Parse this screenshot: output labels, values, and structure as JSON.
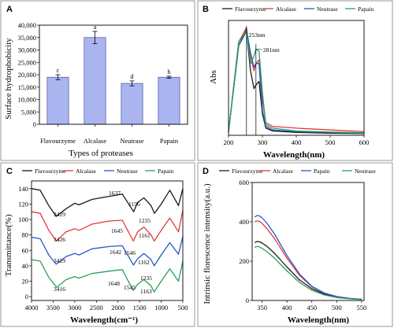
{
  "panels": [
    {
      "letter": "A"
    },
    {
      "letter": "B"
    },
    {
      "letter": "C"
    },
    {
      "letter": "D"
    }
  ],
  "colors": {
    "black": "#1a1a1a",
    "red": "#e23a3a",
    "blue": "#2657c9",
    "green": "#2aa05a",
    "bar_fill": "#aab5f0",
    "bar_stroke": "#3a3a8a"
  },
  "chart_data": [
    {
      "panel": "A",
      "type": "bar",
      "categories": [
        "Flavourzyme",
        "Alcalase",
        "Neutrase",
        "Papain"
      ],
      "values": [
        19000,
        35000,
        16500,
        19000
      ],
      "errors": [
        1000,
        2500,
        1000,
        400
      ],
      "significance": [
        "c",
        "a",
        "d",
        "b"
      ],
      "xlabel": "Types of proteases",
      "ylabel": "Surface hydrophobicity",
      "ylim": [
        0,
        40000
      ],
      "yticks": [
        0,
        5000,
        10000,
        15000,
        20000,
        25000,
        30000,
        35000,
        40000
      ],
      "ytick_labels": [
        "0",
        "5,000",
        "10,000",
        "15,000",
        "20,000",
        "25,000",
        "30,000",
        "35,000",
        "40,000"
      ],
      "grid": false
    },
    {
      "panel": "B",
      "type": "line",
      "xlabel": "Wavelength(nm)",
      "ylabel": "Abs",
      "xlim": [
        200,
        600
      ],
      "ylim": [
        0,
        3.2
      ],
      "xticks": [
        200,
        300,
        400,
        500,
        600
      ],
      "legend_position": "top",
      "annotations": [
        {
          "text": "253nm",
          "x": 253
        },
        {
          "text": "281nm",
          "x": 281
        }
      ],
      "series": [
        {
          "name": "Flavourzyme",
          "color": "#1a1a1a",
          "x": [
            200,
            230,
            253,
            265,
            275,
            281,
            290,
            300,
            310,
            330,
            400,
            500,
            600
          ],
          "y": [
            0.1,
            2.5,
            2.9,
            1.8,
            1.3,
            1.4,
            1.5,
            0.6,
            0.2,
            0.12,
            0.08,
            0.06,
            0.05
          ]
        },
        {
          "name": "Alcalase",
          "color": "#e23a3a",
          "x": [
            200,
            230,
            253,
            265,
            275,
            281,
            290,
            300,
            310,
            330,
            400,
            500,
            600
          ],
          "y": [
            0.1,
            2.6,
            3.0,
            2.2,
            1.8,
            2.0,
            2.1,
            1.0,
            0.35,
            0.25,
            0.2,
            0.15,
            0.1
          ]
        },
        {
          "name": "Neutrase",
          "color": "#2657c9",
          "x": [
            200,
            230,
            253,
            265,
            275,
            281,
            290,
            300,
            310,
            330,
            400,
            500,
            600
          ],
          "y": [
            0.1,
            2.5,
            2.95,
            2.3,
            1.9,
            2.0,
            2.0,
            0.7,
            0.25,
            0.15,
            0.1,
            0.08,
            0.06
          ]
        },
        {
          "name": "Papain",
          "color": "#2aa05a",
          "x": [
            200,
            230,
            253,
            265,
            275,
            281,
            290,
            300,
            310,
            330,
            400,
            500,
            600
          ],
          "y": [
            0.1,
            2.6,
            2.9,
            2.0,
            2.2,
            2.4,
            2.35,
            1.2,
            0.3,
            0.2,
            0.12,
            0.09,
            0.07
          ]
        }
      ]
    },
    {
      "panel": "C",
      "type": "line",
      "xlabel": "Wavelength(cm⁻¹)",
      "ylabel": "Transmittance(%)",
      "xlim": [
        4000,
        500
      ],
      "ylim": [
        -5,
        150
      ],
      "xticks": [
        4000,
        3500,
        3000,
        2500,
        2000,
        1500,
        1000,
        500
      ],
      "yticks": [
        0,
        20,
        40,
        60,
        80,
        100,
        120,
        140
      ],
      "legend_position": "top",
      "annotations": [
        {
          "text": "3429",
          "series": 0
        },
        {
          "text": "1637",
          "series": 0
        },
        {
          "text": "1156",
          "series": 0
        },
        {
          "text": "3426",
          "series": 1
        },
        {
          "text": "1645",
          "series": 1
        },
        {
          "text": "1235",
          "series": 1
        },
        {
          "text": "1161",
          "series": 1
        },
        {
          "text": "3429",
          "series": 2
        },
        {
          "text": "1642",
          "series": 2
        },
        {
          "text": "1546",
          "series": 2
        },
        {
          "text": "1162",
          "series": 2
        },
        {
          "text": "3416",
          "series": 3
        },
        {
          "text": "1648",
          "series": 3
        },
        {
          "text": "1545",
          "series": 3
        },
        {
          "text": "1235",
          "series": 3
        },
        {
          "text": "1163",
          "series": 3
        }
      ],
      "series": [
        {
          "name": "Flavourzyme",
          "color": "#1a1a1a",
          "x": [
            4000,
            3800,
            3600,
            3429,
            3200,
            3000,
            2900,
            2600,
            2200,
            1900,
            1637,
            1550,
            1400,
            1235,
            1156,
            1000,
            800,
            600,
            500
          ],
          "y": [
            140,
            138,
            118,
            104,
            114,
            121,
            119,
            126,
            130,
            133,
            110,
            122,
            128,
            118,
            108,
            120,
            138,
            118,
            140
          ]
        },
        {
          "name": "Alcalase",
          "color": "#e23a3a",
          "x": [
            4000,
            3800,
            3600,
            3426,
            3200,
            3000,
            2900,
            2600,
            2200,
            1900,
            1645,
            1545,
            1400,
            1235,
            1161,
            1000,
            800,
            600,
            500
          ],
          "y": [
            110,
            108,
            86,
            72,
            84,
            88,
            86,
            94,
            98,
            99,
            72,
            84,
            90,
            80,
            72,
            86,
            102,
            84,
            112
          ]
        },
        {
          "name": "Neutrase",
          "color": "#2657c9",
          "x": [
            4000,
            3800,
            3600,
            3429,
            3200,
            3000,
            2900,
            2600,
            2200,
            1900,
            1642,
            1546,
            1400,
            1235,
            1162,
            1000,
            800,
            600,
            500
          ],
          "y": [
            77,
            75,
            54,
            42,
            52,
            56,
            54,
            62,
            65,
            66,
            41,
            49,
            56,
            48,
            40,
            54,
            70,
            55,
            78
          ]
        },
        {
          "name": "Papain",
          "color": "#2aa05a",
          "x": [
            4000,
            3800,
            3600,
            3416,
            3200,
            3000,
            2900,
            2600,
            2200,
            1900,
            1648,
            1545,
            1400,
            1235,
            1163,
            1000,
            800,
            600,
            500
          ],
          "y": [
            48,
            46,
            25,
            12,
            22,
            26,
            24,
            30,
            33,
            35,
            8,
            16,
            22,
            14,
            6,
            20,
            36,
            20,
            46
          ]
        }
      ]
    },
    {
      "panel": "D",
      "type": "line",
      "xlabel": "Wavelength(nm)",
      "ylabel": "Intrinsic florescence intensity(a.u.)",
      "xlim": [
        330,
        555
      ],
      "ylim": [
        0,
        600
      ],
      "xticks": [
        350,
        400,
        450,
        500,
        550
      ],
      "yticks": [
        0,
        200,
        400,
        600
      ],
      "legend_position": "top",
      "series": [
        {
          "name": "Flavourzyme",
          "color": "#1a1a1a",
          "x": [
            335,
            340,
            345,
            350,
            360,
            375,
            400,
            425,
            450,
            475,
            500,
            525,
            550
          ],
          "y": [
            295,
            300,
            298,
            292,
            275,
            240,
            170,
            105,
            60,
            33,
            18,
            10,
            6
          ]
        },
        {
          "name": "Alcalase",
          "color": "#e23a3a",
          "x": [
            335,
            340,
            345,
            350,
            360,
            375,
            400,
            425,
            450,
            475,
            500,
            525,
            550
          ],
          "y": [
            400,
            405,
            402,
            392,
            365,
            315,
            215,
            128,
            70,
            37,
            20,
            11,
            6
          ]
        },
        {
          "name": "Papain",
          "color": "#2657c9",
          "x": [
            335,
            340,
            345,
            350,
            360,
            375,
            400,
            425,
            450,
            475,
            500,
            525,
            550
          ],
          "y": [
            425,
            432,
            430,
            420,
            392,
            338,
            228,
            135,
            72,
            38,
            20,
            11,
            6
          ]
        },
        {
          "name": "Neutrase",
          "color": "#2aa05a",
          "x": [
            335,
            340,
            345,
            350,
            360,
            375,
            400,
            425,
            450,
            475,
            500,
            525,
            550
          ],
          "y": [
            270,
            275,
            272,
            265,
            248,
            215,
            150,
            92,
            52,
            28,
            15,
            9,
            5
          ]
        }
      ]
    }
  ]
}
